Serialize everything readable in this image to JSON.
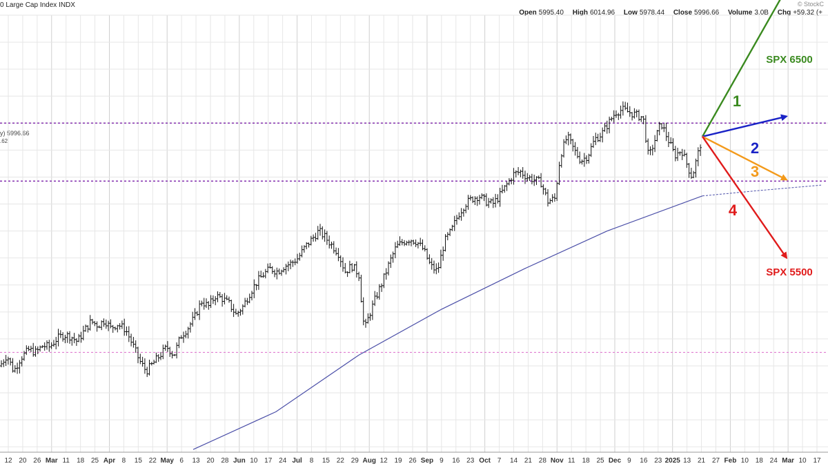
{
  "header": {
    "title": "0 Large Cap Index  INDX",
    "logo": "© StockC",
    "ohlc": [
      {
        "k": "Open",
        "v": "5995.40"
      },
      {
        "k": "High",
        "v": "6014.96"
      },
      {
        "k": "Low",
        "v": "5978.44"
      },
      {
        "k": "Close",
        "v": "5996.66"
      },
      {
        "k": "Volume",
        "v": "3.0B"
      },
      {
        "k": "Chg",
        "v": "+59.32 (+"
      }
    ],
    "price_tag": "y) 5996.66",
    "price_tag2": ".62"
  },
  "chart_data": {
    "type": "ohlc-bar",
    "x_tick_labels": [
      "12",
      "20",
      "26",
      "Mar",
      "11",
      "18",
      "25",
      "Apr",
      "8",
      "15",
      "22",
      "May",
      "6",
      "13",
      "20",
      "28",
      "Jun",
      "10",
      "17",
      "24",
      "Jul",
      "8",
      "15",
      "22",
      "29",
      "Aug",
      "12",
      "19",
      "26",
      "Sep",
      "9",
      "16",
      "23",
      "Oct",
      "7",
      "14",
      "21",
      "28",
      "Nov",
      "11",
      "18",
      "25",
      "Dec",
      "9",
      "16",
      "23",
      "2025",
      "13",
      "21",
      "27",
      "Feb",
      "10",
      "18",
      "24",
      "Mar",
      "10",
      "17"
    ],
    "month_labels": [
      "Mar",
      "Apr",
      "May",
      "Jun",
      "Jul",
      "Aug",
      "Sep",
      "Oct",
      "Nov",
      "Dec",
      "2025",
      "Feb",
      "Mar"
    ],
    "price_path": [
      [
        0,
        5100
      ],
      [
        10,
        5140
      ],
      [
        20,
        5080
      ],
      [
        30,
        5130
      ],
      [
        42,
        5160
      ],
      [
        52,
        5150
      ],
      [
        62,
        5175
      ],
      [
        72,
        5170
      ],
      [
        82,
        5200
      ],
      [
        92,
        5215
      ],
      [
        102,
        5210
      ],
      [
        112,
        5190
      ],
      [
        122,
        5230
      ],
      [
        132,
        5265
      ],
      [
        142,
        5250
      ],
      [
        152,
        5270
      ],
      [
        160,
        5240
      ],
      [
        170,
        5255
      ],
      [
        182,
        5235
      ],
      [
        192,
        5180
      ],
      [
        202,
        5120
      ],
      [
        212,
        5080
      ],
      [
        222,
        5110
      ],
      [
        232,
        5140
      ],
      [
        242,
        5170
      ],
      [
        252,
        5140
      ],
      [
        262,
        5210
      ],
      [
        272,
        5240
      ],
      [
        282,
        5280
      ],
      [
        292,
        5340
      ],
      [
        302,
        5320
      ],
      [
        312,
        5360
      ],
      [
        322,
        5350
      ],
      [
        332,
        5330
      ],
      [
        342,
        5290
      ],
      [
        352,
        5320
      ],
      [
        362,
        5370
      ],
      [
        372,
        5410
      ],
      [
        382,
        5440
      ],
      [
        392,
        5460
      ],
      [
        402,
        5450
      ],
      [
        412,
        5470
      ],
      [
        422,
        5480
      ],
      [
        432,
        5500
      ],
      [
        442,
        5540
      ],
      [
        452,
        5570
      ],
      [
        462,
        5600
      ],
      [
        470,
        5580
      ],
      [
        480,
        5550
      ],
      [
        490,
        5520
      ],
      [
        500,
        5450
      ],
      [
        510,
        5470
      ],
      [
        520,
        5440
      ],
      [
        528,
        5230
      ],
      [
        534,
        5280
      ],
      [
        544,
        5350
      ],
      [
        554,
        5410
      ],
      [
        564,
        5480
      ],
      [
        574,
        5540
      ],
      [
        584,
        5560
      ],
      [
        594,
        5570
      ],
      [
        604,
        5560
      ],
      [
        614,
        5530
      ],
      [
        624,
        5470
      ],
      [
        634,
        5450
      ],
      [
        644,
        5560
      ],
      [
        654,
        5600
      ],
      [
        664,
        5660
      ],
      [
        674,
        5700
      ],
      [
        684,
        5720
      ],
      [
        694,
        5730
      ],
      [
        704,
        5710
      ],
      [
        714,
        5700
      ],
      [
        724,
        5730
      ],
      [
        734,
        5770
      ],
      [
        744,
        5810
      ],
      [
        754,
        5820
      ],
      [
        764,
        5800
      ],
      [
        774,
        5790
      ],
      [
        784,
        5780
      ],
      [
        794,
        5710
      ],
      [
        804,
        5720
      ],
      [
        812,
        5880
      ],
      [
        822,
        5950
      ],
      [
        832,
        5900
      ],
      [
        842,
        5860
      ],
      [
        852,
        5880
      ],
      [
        862,
        5940
      ],
      [
        872,
        5960
      ],
      [
        882,
        6000
      ],
      [
        892,
        6040
      ],
      [
        902,
        6050
      ],
      [
        912,
        6040
      ],
      [
        922,
        6030
      ],
      [
        932,
        6020
      ],
      [
        940,
        5870
      ],
      [
        948,
        5930
      ],
      [
        958,
        6000
      ],
      [
        968,
        5940
      ],
      [
        978,
        5880
      ],
      [
        988,
        5900
      ],
      [
        998,
        5830
      ],
      [
        1003,
        5800
      ],
      [
        1010,
        5870
      ],
      [
        1018,
        5950
      ]
    ],
    "ma200": [
      [
        280,
        4790
      ],
      [
        400,
        4930
      ],
      [
        520,
        5140
      ],
      [
        640,
        5310
      ],
      [
        760,
        5460
      ],
      [
        880,
        5600
      ],
      [
        1018,
        5730
      ],
      [
        1100,
        5750
      ],
      [
        1190,
        5770
      ]
    ],
    "ma200_projection_start": 1018,
    "support_levels": [
      6000,
      5785,
      5150
    ],
    "scenarios": [
      {
        "label": "1",
        "name": "SPX 6500",
        "color": "#3a8a1f",
        "target": 6500
      },
      {
        "label": "2",
        "name": "",
        "color": "#1a23c6",
        "target": 6025
      },
      {
        "label": "3",
        "name": "",
        "color": "#f39a1b",
        "target": 5790
      },
      {
        "label": "4",
        "name": "SPX 5500",
        "color": "#e01b1b",
        "target": 5500
      }
    ],
    "y_range": [
      4780,
      6400
    ]
  }
}
